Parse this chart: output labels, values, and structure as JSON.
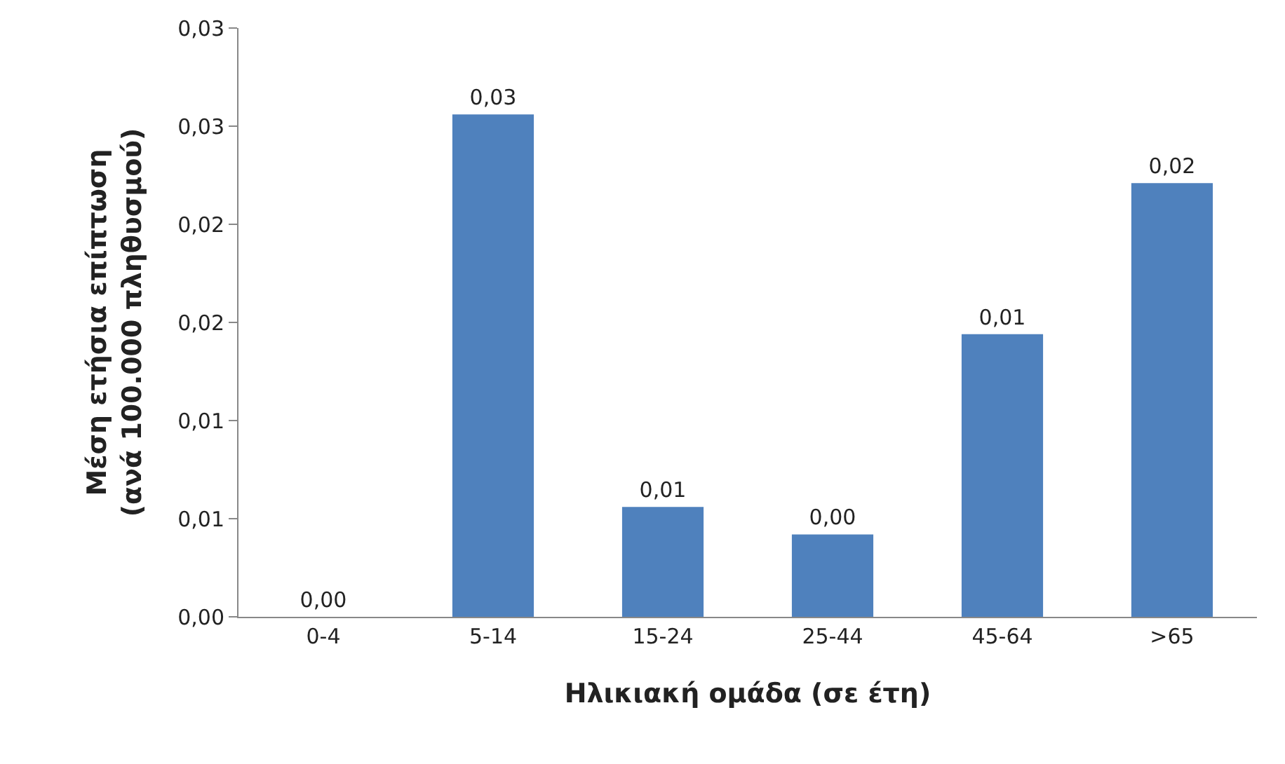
{
  "chart_data": {
    "type": "bar",
    "xlabel": "Ηλικιακή ομάδα (σε έτη)",
    "ylabel": "Μέση ετήσια επίπτωση\n(ανά 100.000 πληθυσμού)",
    "categories": [
      "0-4",
      "5-14",
      "15-24",
      "25-44",
      "45-64",
      ">65"
    ],
    "values": [
      0,
      0.0256,
      0.0056,
      0.0042,
      0.0144,
      0.0221
    ],
    "value_labels": [
      "0,00",
      "0,03",
      "0,01",
      "0,00",
      "0,01",
      "0,02"
    ],
    "color": "#4f81bd",
    "ylim": [
      0,
      0.03
    ],
    "yticks": [
      {
        "value": 0,
        "label": "0,00"
      },
      {
        "value": 0.005,
        "label": "0,01"
      },
      {
        "value": 0.01,
        "label": "0,01"
      },
      {
        "value": 0.015,
        "label": "0,02"
      },
      {
        "value": 0.02,
        "label": "0,02"
      },
      {
        "value": 0.025,
        "label": "0,03"
      },
      {
        "value": 0.03,
        "label": "0,03"
      }
    ],
    "grid": false,
    "legend": false
  }
}
